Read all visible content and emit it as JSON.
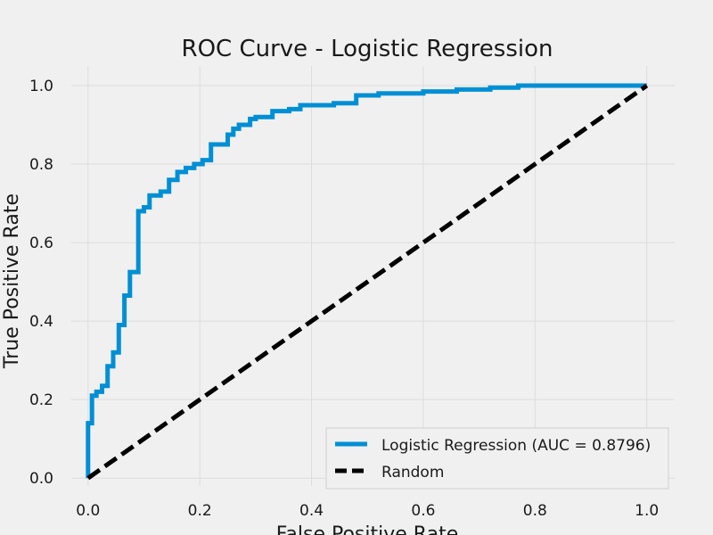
{
  "chart_data": {
    "type": "line",
    "title": "ROC Curve - Logistic Regression",
    "xlabel": "False Positive Rate",
    "ylabel": "True Positive Rate",
    "xlim": [
      -0.03,
      1.05
    ],
    "ylim": [
      -0.02,
      1.05
    ],
    "xticks": [
      0.0,
      0.2,
      0.4,
      0.6,
      0.8,
      1.0
    ],
    "yticks": [
      0.0,
      0.2,
      0.4,
      0.6,
      0.8,
      1.0
    ],
    "xtick_labels": [
      "0.0",
      "0.2",
      "0.4",
      "0.6",
      "0.8",
      "1.0"
    ],
    "ytick_labels": [
      "0.0",
      "0.2",
      "0.4",
      "0.6",
      "0.8",
      "1.0"
    ],
    "grid": true,
    "legend_position": "lower-right",
    "series": [
      {
        "name": "Logistic Regression (AUC = 0.8796)",
        "color": "#008fd5",
        "style": "solid",
        "x": [
          0.0,
          0.0,
          0.007,
          0.007,
          0.015,
          0.015,
          0.025,
          0.025,
          0.035,
          0.035,
          0.045,
          0.045,
          0.055,
          0.055,
          0.065,
          0.065,
          0.075,
          0.075,
          0.09,
          0.09,
          0.1,
          0.1,
          0.11,
          0.11,
          0.13,
          0.13,
          0.145,
          0.145,
          0.16,
          0.16,
          0.175,
          0.175,
          0.19,
          0.19,
          0.205,
          0.205,
          0.22,
          0.22,
          0.23,
          0.23,
          0.25,
          0.25,
          0.26,
          0.26,
          0.27,
          0.27,
          0.29,
          0.29,
          0.3,
          0.3,
          0.33,
          0.33,
          0.36,
          0.36,
          0.38,
          0.38,
          0.4,
          0.4,
          0.44,
          0.44,
          0.48,
          0.48,
          0.52,
          0.52,
          0.6,
          0.6,
          0.66,
          0.66,
          0.72,
          0.72,
          0.77,
          0.77,
          1.0
        ],
        "y": [
          0.0,
          0.14,
          0.14,
          0.21,
          0.21,
          0.22,
          0.22,
          0.235,
          0.235,
          0.285,
          0.285,
          0.32,
          0.32,
          0.39,
          0.39,
          0.465,
          0.465,
          0.525,
          0.525,
          0.68,
          0.68,
          0.69,
          0.69,
          0.72,
          0.72,
          0.73,
          0.73,
          0.76,
          0.76,
          0.78,
          0.78,
          0.79,
          0.79,
          0.8,
          0.8,
          0.81,
          0.81,
          0.85,
          0.85,
          0.85,
          0.85,
          0.875,
          0.875,
          0.89,
          0.89,
          0.9,
          0.9,
          0.915,
          0.915,
          0.92,
          0.92,
          0.935,
          0.935,
          0.94,
          0.94,
          0.95,
          0.95,
          0.95,
          0.95,
          0.955,
          0.955,
          0.975,
          0.975,
          0.98,
          0.98,
          0.985,
          0.985,
          0.99,
          0.99,
          0.995,
          0.995,
          1.0,
          1.0
        ]
      },
      {
        "name": "Random",
        "color": "#000000",
        "style": "dashed",
        "x": [
          0.0,
          1.0
        ],
        "y": [
          0.0,
          1.0
        ]
      }
    ]
  }
}
